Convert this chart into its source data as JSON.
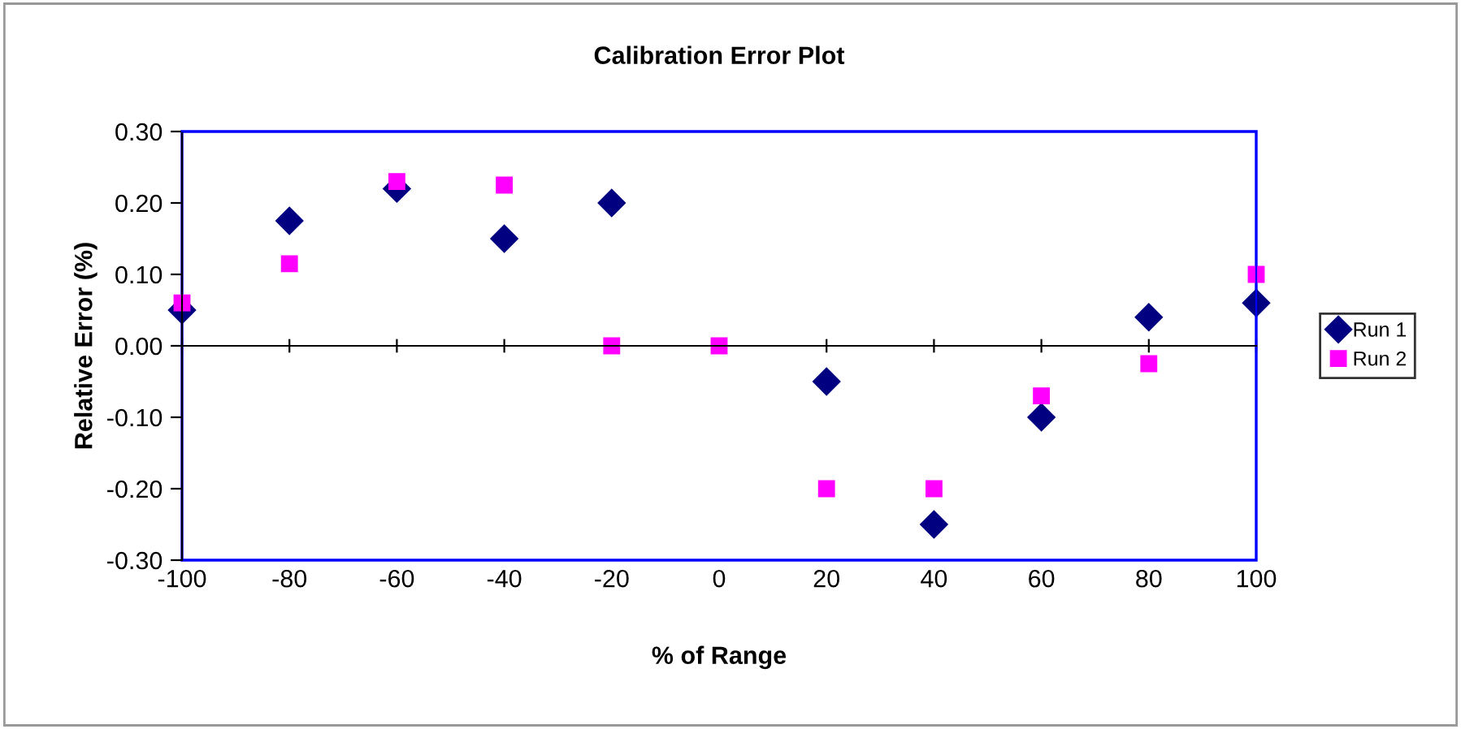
{
  "chart_data": {
    "type": "scatter",
    "title": "Calibration Error Plot",
    "xlabel": "% of Range",
    "ylabel": "Relative Error (%)",
    "x": [
      -100,
      -80,
      -60,
      -40,
      -20,
      0,
      20,
      40,
      60,
      80,
      100
    ],
    "series": [
      {
        "name": "Run 1",
        "color": "#000080",
        "marker": "diamond",
        "values": [
          0.05,
          0.175,
          0.22,
          0.15,
          0.2,
          null,
          -0.05,
          -0.25,
          -0.1,
          0.04,
          0.06
        ]
      },
      {
        "name": "Run 2",
        "color": "#ff00ff",
        "marker": "square",
        "values": [
          0.06,
          0.115,
          0.23,
          0.225,
          0.0,
          0.0,
          -0.2,
          -0.2,
          -0.07,
          -0.025,
          0.1
        ]
      }
    ],
    "xlim": [
      -100,
      100
    ],
    "xticks": [
      -100,
      -80,
      -60,
      -40,
      -20,
      0,
      20,
      40,
      60,
      80,
      100
    ],
    "ylim": [
      -0.3,
      0.3
    ],
    "yticks": [
      {
        "value": -0.3,
        "label": "-0.30"
      },
      {
        "value": -0.2,
        "label": "-0.20"
      },
      {
        "value": -0.1,
        "label": "-0.10"
      },
      {
        "value": 0,
        "label": "0.00"
      },
      {
        "value": 0.1,
        "label": "0.10"
      },
      {
        "value": 0.2,
        "label": "0.20"
      },
      {
        "value": 0.3,
        "label": "0.30"
      }
    ],
    "legend": "right"
  }
}
